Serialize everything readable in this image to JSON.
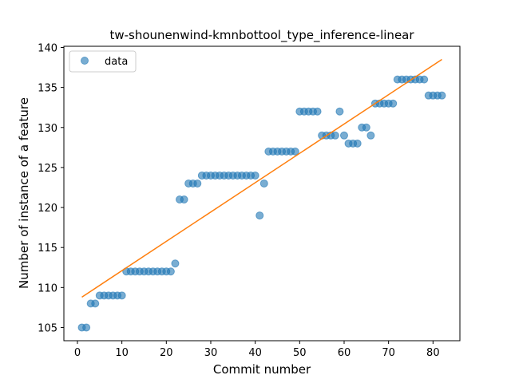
{
  "chart_data": {
    "type": "scatter",
    "title": "tw-shounenwind-kmnbottool_type_inference-linear",
    "xlabel": "Commit number",
    "ylabel": "Number of instance of a feature",
    "xlim": [
      -3.05,
      86.05
    ],
    "ylim": [
      103.35,
      140.15
    ],
    "xticks": [
      0,
      10,
      20,
      30,
      40,
      50,
      60,
      70,
      80
    ],
    "yticks": [
      105,
      110,
      115,
      120,
      125,
      130,
      135,
      140
    ],
    "grid": false,
    "legend_position": "top-left",
    "series": [
      {
        "name": "data",
        "kind": "scatter",
        "color": "#1f77b4",
        "x": [
          1,
          2,
          3,
          4,
          5,
          6,
          7,
          8,
          9,
          10,
          11,
          12,
          13,
          14,
          15,
          16,
          17,
          18,
          19,
          20,
          21,
          22,
          23,
          24,
          25,
          26,
          27,
          28,
          29,
          30,
          31,
          32,
          33,
          34,
          35,
          36,
          37,
          38,
          39,
          40,
          41,
          42,
          43,
          44,
          45,
          46,
          47,
          48,
          49,
          50,
          51,
          52,
          53,
          54,
          55,
          56,
          57,
          58,
          59,
          60,
          61,
          62,
          63,
          64,
          65,
          66,
          67,
          68,
          69,
          70,
          71,
          72,
          73,
          74,
          75,
          76,
          77,
          78,
          79,
          80,
          81,
          82
        ],
        "y": [
          105,
          105,
          108,
          108,
          109,
          109,
          109,
          109,
          109,
          109,
          112,
          112,
          112,
          112,
          112,
          112,
          112,
          112,
          112,
          112,
          112,
          113,
          121,
          121,
          123,
          123,
          123,
          124,
          124,
          124,
          124,
          124,
          124,
          124,
          124,
          124,
          124,
          124,
          124,
          124,
          119,
          123,
          127,
          127,
          127,
          127,
          127,
          127,
          127,
          132,
          132,
          132,
          132,
          132,
          129,
          129,
          129,
          129,
          132,
          129,
          128,
          128,
          128,
          130,
          130,
          129,
          133,
          133,
          133,
          133,
          133,
          136,
          136,
          136,
          136,
          136,
          136,
          136,
          134,
          134,
          134,
          134
        ]
      },
      {
        "kind": "line",
        "color": "#ff7f0e",
        "x": [
          1,
          82
        ],
        "y": [
          108.8,
          138.5
        ]
      }
    ]
  }
}
